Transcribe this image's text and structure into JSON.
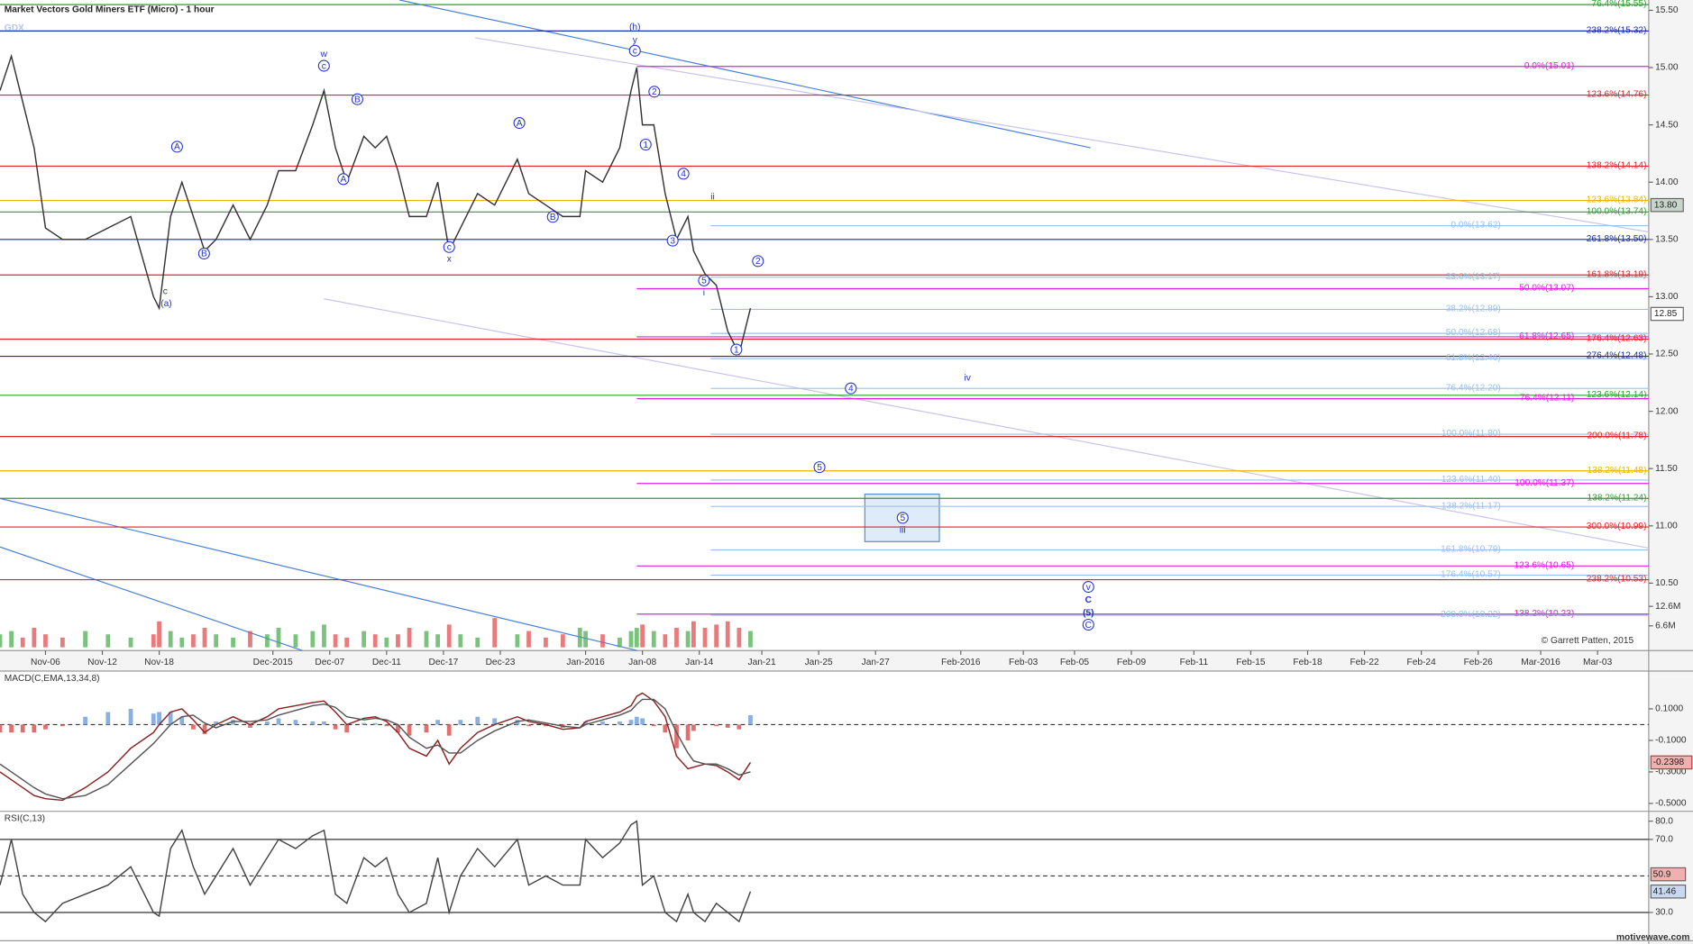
{
  "chart_data": {
    "type": "line",
    "title": "Market Vectors Gold Miners ETF (Micro) - 1 hour",
    "symbol": "GDX",
    "credit": "© Garrett Patten, 2015",
    "brand": "motivewave.com",
    "color": "#333333",
    "xlim": [
      0,
      290
    ],
    "xticks": [
      {
        "value": 8,
        "label": "Nov-06"
      },
      {
        "value": 18,
        "label": "Nov-12"
      },
      {
        "value": 28,
        "label": "Nov-18"
      },
      {
        "value": 48,
        "label": "Dec-2015"
      },
      {
        "value": 58,
        "label": "Dec-07"
      },
      {
        "value": 68,
        "label": "Dec-11"
      },
      {
        "value": 78,
        "label": "Dec-17"
      },
      {
        "value": 88,
        "label": "Dec-23"
      },
      {
        "value": 103,
        "label": "Jan-2016"
      },
      {
        "value": 113,
        "label": "Jan-08"
      },
      {
        "value": 123,
        "label": "Jan-14"
      },
      {
        "value": 134,
        "label": "Jan-21"
      },
      {
        "value": 144,
        "label": "Jan-25"
      },
      {
        "value": 154,
        "label": "Jan-27"
      },
      {
        "value": 169,
        "label": "Feb-2016"
      },
      {
        "value": 180,
        "label": "Feb-03"
      },
      {
        "value": 189,
        "label": "Feb-05"
      },
      {
        "value": 199,
        "label": "Feb-09"
      },
      {
        "value": 210,
        "label": "Feb-11"
      },
      {
        "value": 220,
        "label": "Feb-15"
      },
      {
        "value": 230,
        "label": "Feb-18"
      },
      {
        "value": 240,
        "label": "Feb-22"
      },
      {
        "value": 250,
        "label": "Feb-24"
      },
      {
        "value": 260,
        "label": "Feb-26"
      },
      {
        "value": 271,
        "label": "Mar-2016"
      },
      {
        "value": 281,
        "label": "Mar-03"
      }
    ],
    "ylim": [
      9.94,
      15.59
    ],
    "yticks": [
      {
        "value": 10.5,
        "label": "10.50"
      },
      {
        "value": 11,
        "label": "11.00"
      },
      {
        "value": 11.5,
        "label": "11.50"
      },
      {
        "value": 12,
        "label": "12.00"
      },
      {
        "value": 12.5,
        "label": "12.50"
      },
      {
        "value": 13,
        "label": "13.00"
      },
      {
        "value": 13.5,
        "label": "13.50"
      },
      {
        "value": 14,
        "label": "14.00"
      },
      {
        "value": 14.5,
        "label": "14.50"
      },
      {
        "value": 15,
        "label": "15.00"
      },
      {
        "value": 15.5,
        "label": "15.50"
      }
    ],
    "x": [
      0,
      2,
      4,
      6,
      8,
      11,
      15,
      19,
      23,
      27,
      28,
      30,
      32,
      34,
      36,
      38,
      41,
      44,
      47,
      49,
      52,
      55,
      57,
      59,
      61,
      64,
      66,
      68,
      70,
      72,
      75,
      77,
      79,
      81,
      84,
      87,
      91,
      93,
      96,
      99,
      102,
      103,
      106,
      109,
      111,
      112,
      113,
      115,
      117,
      119,
      121,
      122,
      124,
      126,
      128,
      130,
      132
    ],
    "values": [
      14.8,
      15.1,
      14.7,
      14.3,
      13.6,
      13.5,
      13.5,
      13.6,
      13.7,
      13.0,
      12.9,
      13.7,
      14.0,
      13.7,
      13.4,
      13.5,
      13.8,
      13.5,
      13.8,
      14.1,
      14.1,
      14.5,
      14.8,
      14.3,
      14.0,
      14.4,
      14.3,
      14.4,
      14.1,
      13.7,
      13.7,
      14.0,
      13.4,
      13.6,
      13.9,
      13.8,
      14.2,
      13.9,
      13.8,
      13.7,
      13.7,
      14.1,
      14.0,
      14.3,
      14.8,
      15.0,
      14.5,
      14.5,
      13.9,
      13.5,
      13.7,
      13.4,
      13.2,
      13.1,
      12.7,
      12.5,
      12.9
    ],
    "price_tags": [
      {
        "value": 13.8,
        "label": "13.80"
      },
      {
        "value": 12.85,
        "label": "12.85"
      }
    ],
    "volume": {
      "values": [
        4,
        5,
        3,
        6,
        4,
        3,
        5,
        4,
        3,
        4,
        8,
        5,
        3,
        4,
        6,
        4,
        3,
        5,
        4,
        6,
        4,
        5,
        7,
        4,
        3,
        5,
        4,
        3,
        4,
        6,
        5,
        4,
        7,
        4,
        3,
        9,
        4,
        5,
        3,
        4,
        6,
        5,
        4,
        3,
        5,
        6,
        7,
        5,
        4,
        6,
        5,
        8,
        6,
        7,
        8,
        6,
        5
      ],
      "ylim": [
        0,
        199
      ],
      "yticks": [
        {
          "value": 6.6,
          "label": "6.6M"
        },
        {
          "value": 12.6,
          "label": "12.6M"
        }
      ],
      "up_color": "#4caf50",
      "down_color": "#e05050"
    },
    "levels": [
      {
        "label": "76.4%(15.55)",
        "value": 15.55,
        "color": "#2e9e2e",
        "from": 0
      },
      {
        "label": "238.2%(15.32)",
        "value": 15.32,
        "color": "#1a2ca8",
        "from": 0
      },
      {
        "label": "0.0%(15.01)",
        "value": 15.01,
        "color": "#e020e0",
        "from": 112
      },
      {
        "label": "123.6%(14.76)",
        "value": 14.76,
        "color": "#e0262b",
        "from": 0
      },
      {
        "label": "138.2%(14.14)",
        "value": 14.14,
        "color": "#e0262b",
        "from": 0
      },
      {
        "label": "123.6%(13.84)",
        "value": 13.84,
        "color": "#e8b800",
        "from": 0
      },
      {
        "label": "100.0%(13.74)",
        "value": 13.74,
        "color": "#2e9e2e",
        "from": 0
      },
      {
        "label": "0.0%(13.62)",
        "value": 13.62,
        "color": "#9cc0e8",
        "from": 125
      },
      {
        "label": "261.8%(13.50)",
        "value": 13.5,
        "color": "#1a2ca8",
        "from": 0
      },
      {
        "label": "161.8%(13.19)",
        "value": 13.19,
        "color": "#e0262b",
        "from": 0
      },
      {
        "label": "23.6%(13.17)",
        "value": 13.17,
        "color": "#9cc0e8",
        "from": 125
      },
      {
        "label": "50.0%(13.07)",
        "value": 13.07,
        "color": "#e020e0",
        "from": 112
      },
      {
        "label": "38.2%(12.89)",
        "value": 12.89,
        "color": "#9cc0e8",
        "from": 125
      },
      {
        "label": "50.0%(12.68)",
        "value": 12.68,
        "color": "#9cc0e8",
        "from": 125
      },
      {
        "label": "61.8%(12.65)",
        "value": 12.65,
        "color": "#e020e0",
        "from": 112
      },
      {
        "label": "176.4%(12.63)",
        "value": 12.63,
        "color": "#e0262b",
        "from": 0
      },
      {
        "label": "276.4%(12.48)",
        "value": 12.48,
        "color": "#1a2ca8",
        "from": 0
      },
      {
        "label": "61.8%(12.46)",
        "value": 12.46,
        "color": "#9cc0e8",
        "from": 125
      },
      {
        "label": "76.4%(12.20)",
        "value": 12.2,
        "color": "#9cc0e8",
        "from": 125
      },
      {
        "label": "123.6%(12.14)",
        "value": 12.14,
        "color": "#2e9e2e",
        "from": 0
      },
      {
        "label": "76.4%(12.11)",
        "value": 12.11,
        "color": "#e020e0",
        "from": 112
      },
      {
        "label": "100.0%(11.80)",
        "value": 11.8,
        "color": "#9cc0e8",
        "from": 125
      },
      {
        "label": "200.0%(11.78)",
        "value": 11.78,
        "color": "#e0262b",
        "from": 0
      },
      {
        "label": "138.2%(11.48)",
        "value": 11.48,
        "color": "#e8b800",
        "from": 0
      },
      {
        "label": "123.6%(11.40)",
        "value": 11.4,
        "color": "#9cc0e8",
        "from": 125
      },
      {
        "label": "100.0%(11.37)",
        "value": 11.37,
        "color": "#e020e0",
        "from": 112
      },
      {
        "label": "138.2%(11.24)",
        "value": 11.24,
        "color": "#2e9e2e",
        "from": 0
      },
      {
        "label": "138.2%(11.17)",
        "value": 11.17,
        "color": "#9cc0e8",
        "from": 125
      },
      {
        "label": "300.0%(10.99)",
        "value": 10.99,
        "color": "#e0262b",
        "from": 0
      },
      {
        "label": "161.8%(10.79)",
        "value": 10.79,
        "color": "#9cc0e8",
        "from": 125
      },
      {
        "label": "123.6%(10.65)",
        "value": 10.65,
        "color": "#e020e0",
        "from": 112
      },
      {
        "label": "176.4%(10.57)",
        "value": 10.57,
        "color": "#9cc0e8",
        "from": 125
      },
      {
        "label": "238.2%(10.53)",
        "value": 10.53,
        "color": "#e0262b",
        "from": 0
      },
      {
        "label": "138.2%(10.23)",
        "value": 10.23,
        "color": "#e020e0",
        "from": 112
      },
      {
        "label": "200.0%(10.22)",
        "value": 10.22,
        "color": "#9cc0e8",
        "from": 125
      }
    ],
    "waves": [
      {
        "text": "w"
      },
      {
        "text": "c",
        "circle": true
      },
      {
        "text": "(h)"
      },
      {
        "text": "y"
      },
      {
        "text": "c",
        "circle": true
      },
      {
        "text": "A",
        "circle": true
      },
      {
        "text": "B",
        "circle": true
      },
      {
        "text": "c"
      },
      {
        "text": "(a)"
      },
      {
        "text": "A",
        "circle": true
      },
      {
        "text": "B",
        "circle": true
      },
      {
        "text": "c",
        "circle": true
      },
      {
        "text": "x"
      },
      {
        "text": "A",
        "circle": true
      },
      {
        "text": "B",
        "circle": true
      },
      {
        "text": "2",
        "circle": true
      },
      {
        "text": "1",
        "circle": true
      },
      {
        "text": "4",
        "circle": true
      },
      {
        "text": "3",
        "circle": true
      },
      {
        "text": "ii"
      },
      {
        "text": "5",
        "circle": true
      },
      {
        "text": "i"
      },
      {
        "text": "2",
        "circle": true
      },
      {
        "text": "1",
        "circle": true
      },
      {
        "text": "4",
        "circle": true
      },
      {
        "text": "iv"
      },
      {
        "text": "5",
        "circle": true
      },
      {
        "text": "5",
        "circle": true
      },
      {
        "text": "iii"
      },
      {
        "text": "v",
        "circle": true
      },
      {
        "text": "C",
        "bold": true
      },
      {
        "text": "(5)",
        "bold": true
      },
      {
        "text": "C",
        "circle": true
      }
    ],
    "macd": {
      "title": "MACD(C,EMA,13,34,8)",
      "ylim": [
        -0.55,
        0.34
      ],
      "yticks": [
        {
          "value": 0.1,
          "label": "0.1000"
        },
        {
          "value": -0.1,
          "label": "-0.1000"
        },
        {
          "value": -0.3,
          "label": "-0.3000"
        },
        {
          "value": -0.5,
          "label": "-0.5000"
        }
      ],
      "macd": [
        -0.3,
        -0.35,
        -0.4,
        -0.45,
        -0.47,
        -0.48,
        -0.4,
        -0.3,
        -0.15,
        -0.05,
        0.0,
        0.08,
        0.1,
        0.03,
        -0.05,
        0.0,
        0.05,
        0.0,
        0.05,
        0.1,
        0.12,
        0.14,
        0.15,
        0.08,
        0.0,
        0.04,
        0.05,
        0.02,
        -0.05,
        -0.15,
        -0.2,
        -0.1,
        -0.25,
        -0.15,
        -0.05,
        0.0,
        0.05,
        0.02,
        0.0,
        -0.03,
        -0.02,
        0.02,
        0.05,
        0.08,
        0.12,
        0.18,
        0.2,
        0.15,
        0.05,
        -0.2,
        -0.28,
        -0.27,
        -0.25,
        -0.26,
        -0.3,
        -0.35,
        -0.24
      ],
      "signal": [
        -0.25,
        -0.3,
        -0.35,
        -0.4,
        -0.44,
        -0.47,
        -0.45,
        -0.38,
        -0.25,
        -0.12,
        -0.08,
        0.0,
        0.05,
        0.06,
        0.01,
        -0.02,
        0.02,
        0.02,
        0.03,
        0.06,
        0.09,
        0.12,
        0.13,
        0.11,
        0.05,
        0.03,
        0.04,
        0.03,
        0.0,
        -0.08,
        -0.15,
        -0.13,
        -0.18,
        -0.18,
        -0.1,
        -0.04,
        0.02,
        0.03,
        0.01,
        -0.01,
        -0.02,
        0.0,
        0.03,
        0.06,
        0.09,
        0.13,
        0.16,
        0.16,
        0.1,
        -0.05,
        -0.18,
        -0.23,
        -0.25,
        -0.25,
        -0.28,
        -0.32,
        -0.3
      ],
      "histogram": [
        -0.05,
        -0.05,
        -0.05,
        -0.05,
        -0.03,
        -0.01,
        0.05,
        0.08,
        0.1,
        0.07,
        0.08,
        0.08,
        0.05,
        -0.03,
        -0.06,
        0.02,
        0.03,
        -0.02,
        0.02,
        0.04,
        0.03,
        0.02,
        0.02,
        -0.03,
        -0.05,
        0.01,
        0.01,
        -0.01,
        -0.05,
        -0.07,
        -0.05,
        0.03,
        -0.07,
        0.03,
        0.05,
        0.04,
        0.03,
        -0.01,
        -0.01,
        -0.02,
        0.0,
        0.02,
        0.02,
        0.02,
        0.03,
        0.05,
        0.04,
        -0.01,
        -0.05,
        -0.15,
        -0.1,
        -0.04,
        0.0,
        -0.01,
        -0.02,
        -0.03,
        0.06
      ],
      "macd_color": "#8a2020",
      "signal_color": "#555555",
      "up_color": "#8ab0e0",
      "down_color": "#e07070",
      "tag": {
        "value": -0.2398,
        "label": "-0.2398"
      }
    },
    "rsi": {
      "title": "RSI(C,13)",
      "ylim": [
        14.5,
        85.4
      ],
      "yticks": [
        {
          "value": 30,
          "label": "30.0"
        },
        {
          "value": 70,
          "label": "70.0"
        },
        {
          "value": 80,
          "label": "80.0"
        }
      ],
      "bands": [
        30,
        70
      ],
      "midline": 50,
      "values": [
        45,
        70,
        40,
        30,
        25,
        35,
        40,
        45,
        55,
        30,
        28,
        65,
        75,
        55,
        40,
        50,
        65,
        45,
        60,
        70,
        65,
        72,
        75,
        40,
        35,
        60,
        55,
        60,
        40,
        30,
        35,
        60,
        30,
        50,
        65,
        55,
        70,
        45,
        50,
        45,
        45,
        70,
        60,
        68,
        78,
        80,
        45,
        50,
        30,
        25,
        40,
        30,
        25,
        35,
        30,
        25,
        41.46
      ],
      "color": "#444444",
      "tags": [
        {
          "value": 50.9,
          "label": "50.9"
        },
        {
          "value": 41.46,
          "label": "41.46"
        }
      ]
    }
  }
}
